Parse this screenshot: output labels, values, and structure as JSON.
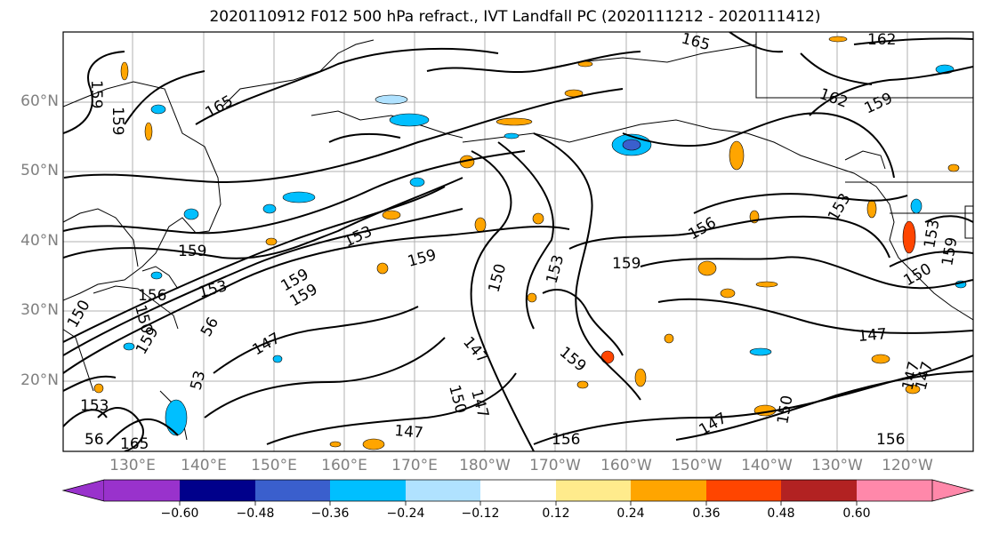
{
  "title": "2020110912 F012 500 hPa refract., IVT Landfall PC (2020111212 - 2020111412)",
  "x_tick_labels": [
    "130°E",
    "140°E",
    "150°E",
    "160°E",
    "170°E",
    "180°W",
    "170°W",
    "160°W",
    "150°W",
    "140°W",
    "130°W",
    "120°W"
  ],
  "y_tick_labels": [
    "60°N",
    "50°N",
    "40°N",
    "30°N",
    "20°N"
  ],
  "contour_labels": [
    "159",
    "159",
    "165",
    "165",
    "162",
    "162",
    "159",
    "159",
    "153",
    "159",
    "153",
    "156",
    "159",
    "159",
    "153",
    "150",
    "153",
    "159",
    "156",
    "153",
    "150",
    "150",
    "159",
    "147",
    "159",
    "147",
    "147",
    "147",
    "150",
    "147",
    "150",
    "147",
    "147",
    "156",
    "156",
    "165",
    "153",
    "56",
    "147",
    "159",
    "150",
    "56",
    "53"
  ],
  "colorbar": {
    "colors": [
      "#9932cc",
      "#00008b",
      "#3a5fcd",
      "#00bfff",
      "#b0e2ff",
      "#ffffff",
      "#ffeb8c",
      "#ffa500",
      "#ff4500",
      "#b22222",
      "#ff88aa"
    ],
    "tick_labels": [
      "−0.60",
      "−0.48",
      "−0.36",
      "−0.24",
      "−0.12",
      "0.12",
      "0.24",
      "0.36",
      "0.48",
      "0.60"
    ]
  },
  "map": {
    "ocean_color": "#ffffff",
    "grid": true,
    "contour_color": "#000000",
    "coastline_color": "#000000"
  }
}
